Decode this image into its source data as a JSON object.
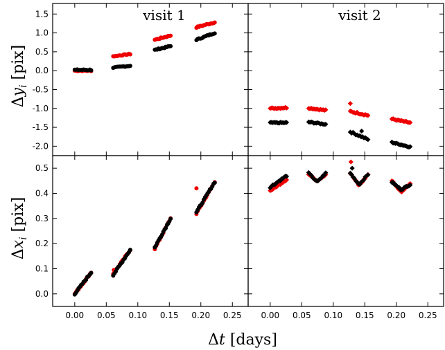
{
  "chart_data": {
    "type": "scatter",
    "xlabel": "Δt [days]",
    "x_ticks": [
      "0.00",
      "0.05",
      "0.10",
      "0.15",
      "0.20",
      "0.25"
    ],
    "xlim": [
      -0.035,
      0.275
    ],
    "colors": {
      "series_a": "#ee0000",
      "series_b": "#000000"
    },
    "rows": [
      {
        "ylabel": "Δy_i [pix]",
        "ylim": [
          -2.25,
          1.78
        ],
        "y_ticks": [
          {
            "v": 1.5,
            "t": "1.5"
          },
          {
            "v": 1.0,
            "t": "1.0"
          },
          {
            "v": 0.5,
            "t": "0.5"
          },
          {
            "v": 0.0,
            "t": "0.0"
          },
          {
            "v": -0.5,
            "t": "-0.5"
          },
          {
            "v": -1.0,
            "t": "-1.0"
          },
          {
            "v": -1.5,
            "t": "-1.5"
          },
          {
            "v": -2.0,
            "t": "-2.0"
          }
        ]
      },
      {
        "ylabel": "Δx_i [pix]",
        "ylim": [
          -0.05,
          0.55
        ],
        "y_ticks": [
          {
            "v": 0.5,
            "t": "0.5"
          },
          {
            "v": 0.4,
            "t": "0.4"
          },
          {
            "v": 0.3,
            "t": "0.3"
          },
          {
            "v": 0.2,
            "t": "0.2"
          },
          {
            "v": 0.1,
            "t": "0.1"
          },
          {
            "v": 0.0,
            "t": "0.0"
          }
        ]
      }
    ],
    "panels": [
      {
        "title": "visit 1",
        "row": 0,
        "col": 0,
        "marker": "circle",
        "segments": [
          {
            "x0": 0.0,
            "x1": 0.026,
            "n": 14,
            "red": [
              0.0,
              0.0
            ],
            "black": [
              0.02,
              0.02
            ],
            "jitter": 0.03
          },
          {
            "x0": 0.061,
            "x1": 0.088,
            "n": 14,
            "red": [
              0.38,
              0.44
            ],
            "black": [
              0.08,
              0.13
            ],
            "jitter": 0.025
          },
          {
            "x0": 0.127,
            "x1": 0.152,
            "n": 14,
            "red": [
              0.82,
              0.93
            ],
            "black": [
              0.55,
              0.65
            ],
            "jitter": 0.03
          },
          {
            "x0": 0.193,
            "x1": 0.222,
            "n": 16,
            "red": [
              1.15,
              1.28
            ],
            "black": [
              0.82,
              1.0
            ],
            "jitter": 0.03
          }
        ]
      },
      {
        "title": "visit 2",
        "row": 0,
        "col": 1,
        "marker": "diamond",
        "segments": [
          {
            "x0": 0.0,
            "x1": 0.026,
            "n": 14,
            "red": [
              -1.0,
              -0.98
            ],
            "black": [
              -1.38,
              -1.38
            ],
            "jitter": 0.03
          },
          {
            "x0": 0.061,
            "x1": 0.088,
            "n": 14,
            "red": [
              -0.99,
              -1.05
            ],
            "black": [
              -1.36,
              -1.42
            ],
            "jitter": 0.03
          },
          {
            "x0": 0.127,
            "x1": 0.155,
            "n": 14,
            "red": [
              -1.08,
              -1.18
            ],
            "black": [
              -1.62,
              -1.82
            ],
            "jitter": 0.04
          },
          {
            "x0": 0.193,
            "x1": 0.222,
            "n": 16,
            "red": [
              -1.28,
              -1.38
            ],
            "black": [
              -1.9,
              -2.02
            ],
            "jitter": 0.03
          }
        ],
        "outliers": [
          {
            "x": 0.127,
            "y": -0.87,
            "c": "red"
          },
          {
            "x": 0.145,
            "y": -1.6,
            "c": "black"
          }
        ]
      },
      {
        "title": "",
        "row": 1,
        "col": 0,
        "marker": "circle",
        "segments": [
          {
            "x0": 0.0,
            "x1": 0.026,
            "n": 14,
            "red": [
              0.0,
              0.085
            ],
            "black": [
              0.0,
              0.085
            ],
            "jitter": 0.006
          },
          {
            "x0": 0.061,
            "x1": 0.088,
            "n": 14,
            "red": [
              0.08,
              0.175
            ],
            "black": [
              0.075,
              0.175
            ],
            "jitter": 0.006
          },
          {
            "x0": 0.127,
            "x1": 0.152,
            "n": 14,
            "red": [
              0.18,
              0.3
            ],
            "black": [
              0.185,
              0.3
            ],
            "jitter": 0.006
          },
          {
            "x0": 0.193,
            "x1": 0.222,
            "n": 16,
            "red": [
              0.32,
              0.445
            ],
            "black": [
              0.325,
              0.445
            ],
            "jitter": 0.006
          }
        ],
        "outliers": [
          {
            "x": 0.062,
            "y": 0.095,
            "c": "red"
          },
          {
            "x": 0.193,
            "y": 0.42,
            "c": "red"
          }
        ]
      },
      {
        "title": "",
        "row": 1,
        "col": 1,
        "marker": "diamond",
        "shape": "v",
        "segments": [
          {
            "x0": 0.0,
            "x1": 0.026,
            "n": 14,
            "red": [
              0.41,
              0.455
            ],
            "black": [
              0.425,
              0.47
            ],
            "jitter": 0.006
          },
          {
            "x0": 0.061,
            "x1": 0.088,
            "n": 14,
            "red": [
              0.475,
              0.45,
              0.475
            ],
            "black": [
              0.48,
              0.445,
              0.48
            ],
            "jitter": 0.006
          },
          {
            "x0": 0.127,
            "x1": 0.155,
            "n": 14,
            "red": [
              0.48,
              0.43,
              0.475
            ],
            "black": [
              0.48,
              0.435,
              0.475
            ],
            "jitter": 0.006
          },
          {
            "x0": 0.193,
            "x1": 0.222,
            "n": 16,
            "red": [
              0.45,
              0.405,
              0.44
            ],
            "black": [
              0.445,
              0.415,
              0.435
            ],
            "jitter": 0.006
          }
        ],
        "outliers": [
          {
            "x": 0.128,
            "y": 0.525,
            "c": "red"
          },
          {
            "x": 0.13,
            "y": 0.5,
            "c": "black"
          }
        ]
      }
    ]
  }
}
